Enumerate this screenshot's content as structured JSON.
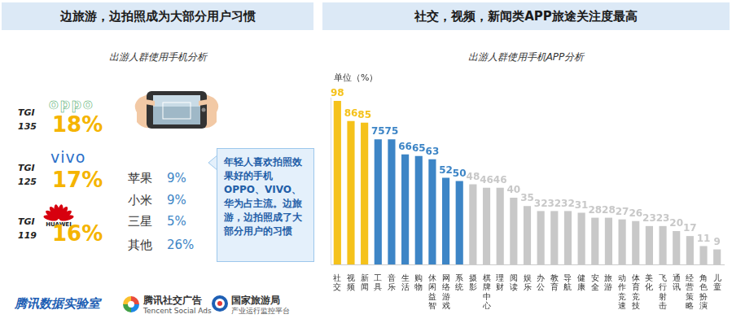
{
  "headers": {
    "left": "边旅游，边拍照成为大部分用户习惯",
    "right": "社交，视频，新闻类APP旅途关注度最高"
  },
  "phones": {
    "title": "出游人群使用手机分析",
    "tgi_label": "TGI",
    "brands": [
      {
        "name": "oppo",
        "tgi": 135,
        "share": "18%"
      },
      {
        "name": "vivo",
        "tgi": 125,
        "share": "17%"
      },
      {
        "name": "HUAWEI",
        "tgi": 119,
        "share": "16%"
      }
    ],
    "others": [
      {
        "name": "苹果",
        "share": "9%"
      },
      {
        "name": "小米",
        "share": "9%"
      },
      {
        "name": "三星",
        "share": "5%"
      },
      {
        "name": "其他",
        "share": "26%"
      }
    ],
    "note": "年轻人喜欢拍照效果好的手机OPPO、VIVO、华为占主流。边旅游，边拍照成了大部分用户的习惯"
  },
  "chart_data": {
    "type": "bar",
    "title": "出游人群使用手机APP分析",
    "y_label": "单位（%）",
    "categories": [
      "社交",
      "视频",
      "新闻",
      "工具",
      "音乐",
      "生活",
      "购物",
      "休闲益智",
      "网络游戏",
      "系统",
      "摄影",
      "棋牌中心",
      "理财",
      "阅读",
      "娱乐",
      "办公",
      "教育",
      "导航",
      "健康",
      "安全",
      "旅游",
      "动作竞速",
      "体育竞技",
      "美化",
      "飞行射击",
      "通讯",
      "经营策略",
      "角色扮演",
      "儿童"
    ],
    "values": [
      98,
      86,
      85,
      75,
      75,
      66,
      65,
      63,
      52,
      50,
      48,
      46,
      46,
      40,
      35,
      32,
      32,
      32,
      31,
      28,
      28,
      27,
      26,
      23,
      23,
      20,
      17,
      11,
      9
    ],
    "colors": [
      "#f5c21b",
      "#f5c21b",
      "#f5c21b",
      "#3d85c6",
      "#3d85c6",
      "#3d85c6",
      "#3d85c6",
      "#3d85c6",
      "#3d85c6",
      "#3d85c6",
      "#c8c8c8",
      "#c8c8c8",
      "#c8c8c8",
      "#c8c8c8",
      "#c8c8c8",
      "#c8c8c8",
      "#c8c8c8",
      "#c8c8c8",
      "#c8c8c8",
      "#c8c8c8",
      "#c8c8c8",
      "#c8c8c8",
      "#c8c8c8",
      "#c8c8c8",
      "#c8c8c8",
      "#c8c8c8",
      "#c8c8c8",
      "#c8c8c8",
      "#c8c8c8"
    ],
    "data_labels": true,
    "grid": false,
    "tick_labels": "x",
    "ylim": [
      0,
      100
    ]
  },
  "footer": {
    "lab": "腾讯数据实验室",
    "ads": "腾讯社交广告",
    "ads_en": "Tencent Social Ads",
    "bureau": "国家旅游局",
    "bureau_sub": "产业运行监控平台"
  }
}
